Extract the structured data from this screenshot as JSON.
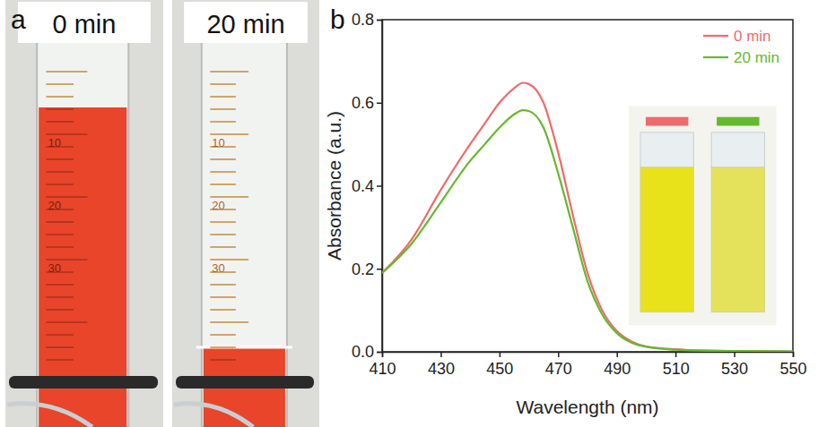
{
  "panel_a": {
    "letter": "a",
    "photos": [
      {
        "label": "0 min",
        "scale_labels": [
          "10",
          "20",
          "30"
        ]
      },
      {
        "label": "20 min",
        "scale_labels": [
          "10",
          "20",
          "30"
        ]
      }
    ]
  },
  "panel_b": {
    "letter": "b"
  },
  "chart_data": {
    "type": "line",
    "x_label": "Wavelength (nm)",
    "y_label": "Absorbance (a.u.)",
    "x": [
      410,
      420,
      430,
      440,
      445,
      450,
      455,
      458,
      460,
      465,
      470,
      475,
      480,
      485,
      490,
      495,
      500,
      510,
      520,
      530,
      550
    ],
    "series": [
      {
        "name": "0 min",
        "color": "#ef6b6b",
        "values": [
          0.19,
          0.27,
          0.39,
          0.5,
          0.55,
          0.6,
          0.635,
          0.648,
          0.645,
          0.6,
          0.48,
          0.33,
          0.19,
          0.1,
          0.05,
          0.025,
          0.013,
          0.006,
          0.003,
          0.002,
          0.001
        ]
      },
      {
        "name": "20 min",
        "color": "#66b82e",
        "values": [
          0.19,
          0.26,
          0.36,
          0.46,
          0.5,
          0.54,
          0.572,
          0.582,
          0.58,
          0.54,
          0.43,
          0.3,
          0.17,
          0.09,
          0.045,
          0.022,
          0.012,
          0.005,
          0.003,
          0.002,
          0.001
        ]
      }
    ],
    "xlim": [
      410,
      550
    ],
    "xticks": [
      410,
      430,
      450,
      470,
      490,
      510,
      530,
      550
    ],
    "ylim": [
      0,
      0.8
    ],
    "yticks": [
      {
        "value": 0,
        "label": "0.0"
      },
      {
        "value": 0.2,
        "label": "0.2"
      },
      {
        "value": 0.4,
        "label": "0.4"
      },
      {
        "value": 0.6,
        "label": "0.6"
      },
      {
        "value": 0.8,
        "label": "0.8"
      }
    ],
    "legend": "upper right",
    "grid": false
  }
}
